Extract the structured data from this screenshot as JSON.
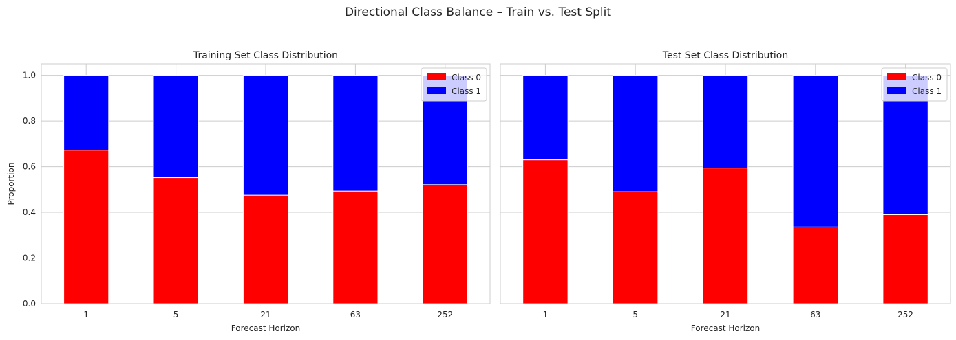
{
  "figure": {
    "title": "Directional Class Balance – Train vs. Test Split"
  },
  "colors": {
    "class0": "#ff0000",
    "class1": "#0000ff",
    "grid": "#cccccc",
    "spine": "#cccccc",
    "bar_edge": "#ffffff"
  },
  "chart_data": [
    {
      "type": "bar",
      "stacked": true,
      "title": "Training Set Class Distribution",
      "xlabel": "Forecast Horizon",
      "ylabel": "Proportion",
      "categories": [
        "1",
        "5",
        "21",
        "63",
        "252"
      ],
      "ylim": [
        0,
        1.05
      ],
      "yticks": [
        "0.0",
        "0.2",
        "0.4",
        "0.6",
        "0.8",
        "1.0"
      ],
      "grid": true,
      "legend": "top-right",
      "series": [
        {
          "name": "Class 0",
          "values": [
            0.672,
            0.552,
            0.475,
            0.493,
            0.521
          ]
        },
        {
          "name": "Class 1",
          "values": [
            0.328,
            0.448,
            0.525,
            0.507,
            0.479
          ]
        }
      ]
    },
    {
      "type": "bar",
      "stacked": true,
      "title": "Test Set Class Distribution",
      "xlabel": "Forecast Horizon",
      "ylabel": "",
      "categories": [
        "1",
        "5",
        "21",
        "63",
        "252"
      ],
      "ylim": [
        0,
        1.05
      ],
      "yticks": [],
      "grid": true,
      "legend": "top-right",
      "series": [
        {
          "name": "Class 0",
          "values": [
            0.63,
            0.49,
            0.594,
            0.336,
            0.39
          ]
        },
        {
          "name": "Class 1",
          "values": [
            0.37,
            0.51,
            0.406,
            0.664,
            0.61
          ]
        }
      ]
    }
  ]
}
